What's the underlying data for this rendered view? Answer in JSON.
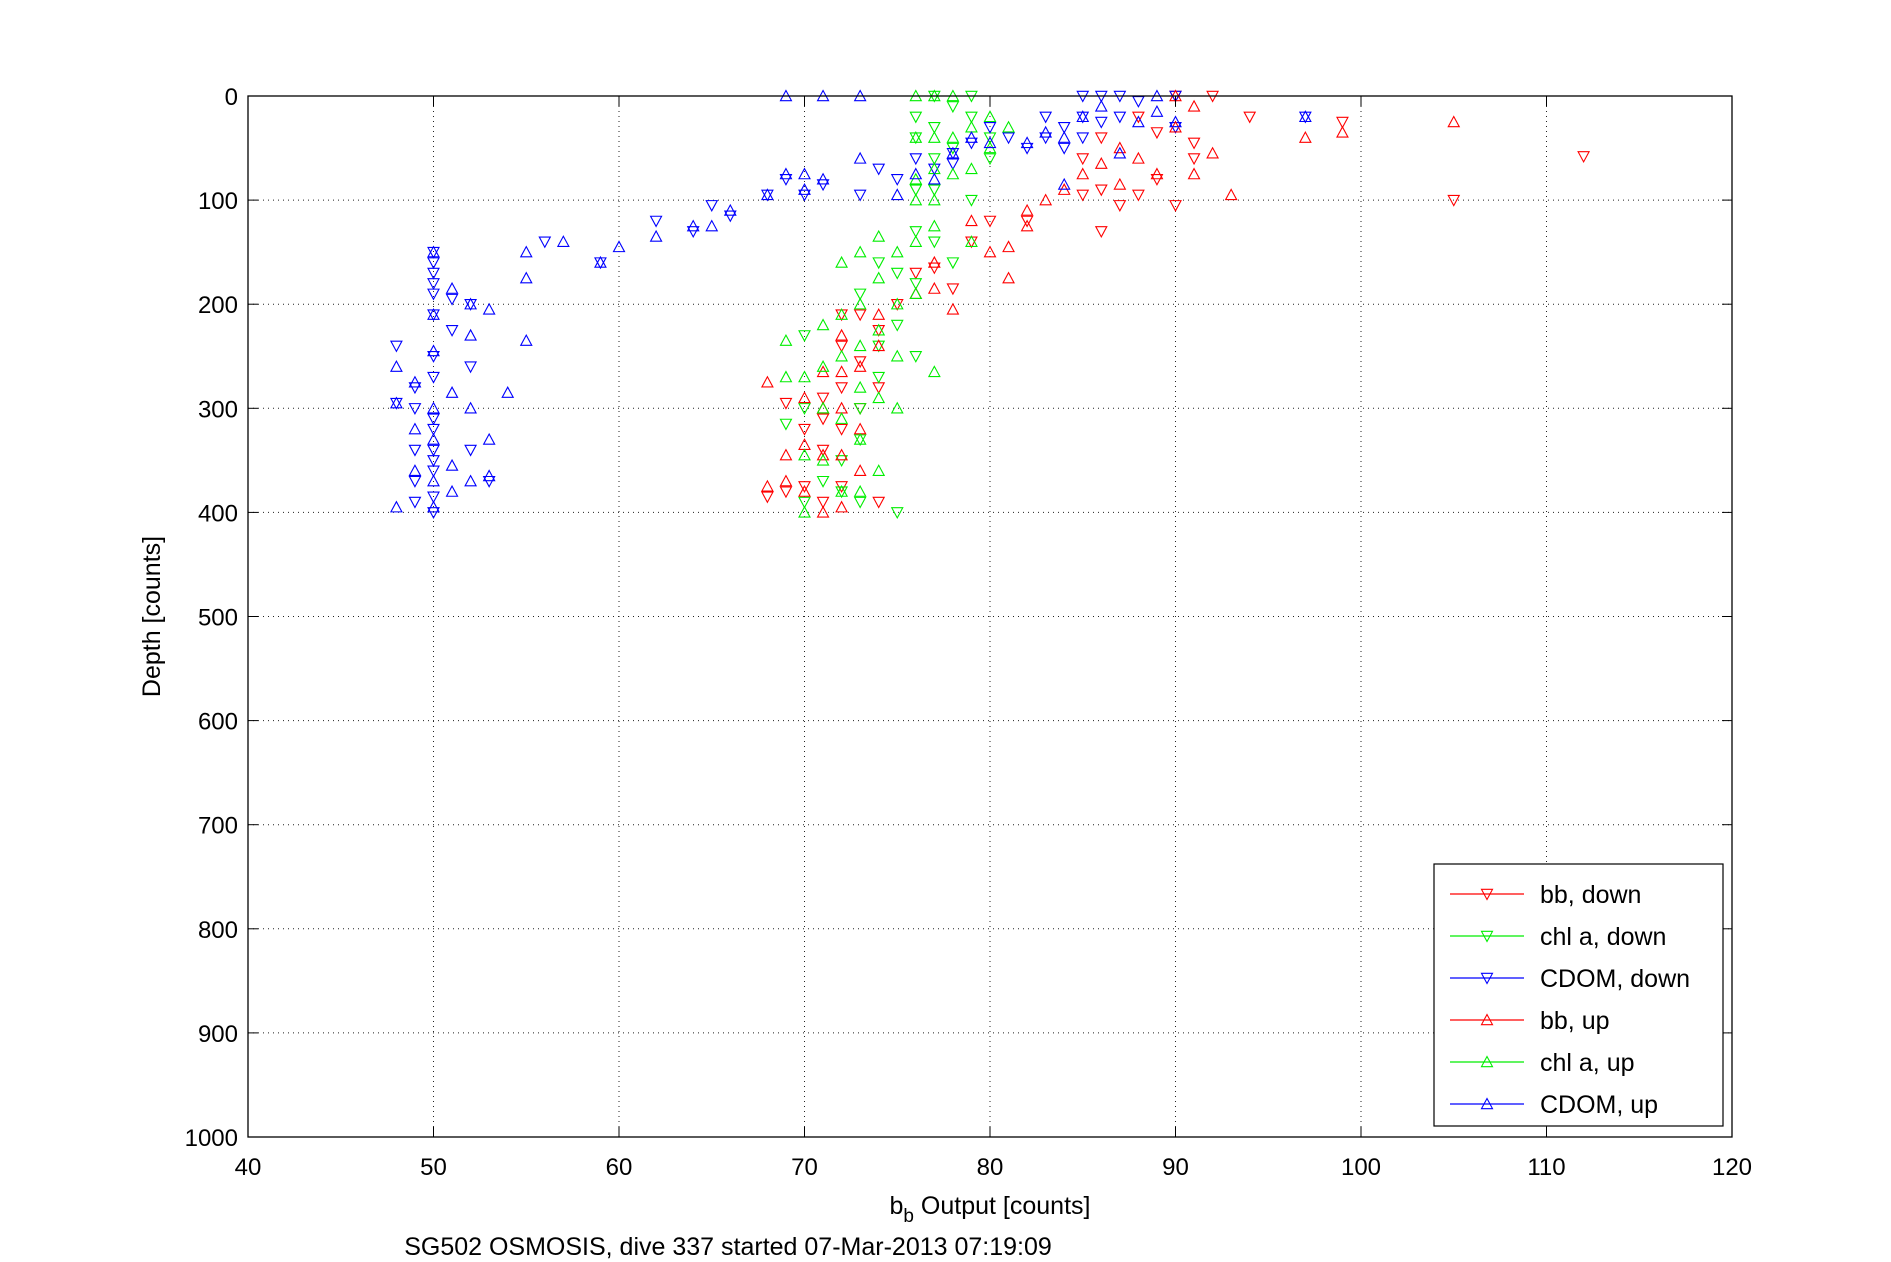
{
  "chart_data": {
    "type": "scatter",
    "xlabel_main": "b",
    "xlabel_sub": "b",
    "xlabel_rest": " Output [counts]",
    "ylabel": "Depth [counts]",
    "caption": "SG502 OSMOSIS, dive 337 started 07-Mar-2013 07:19:09",
    "xlim": [
      40,
      120
    ],
    "ylim": [
      0,
      1000
    ],
    "y_reversed": true,
    "grid": true,
    "legend_position": "bottom-right",
    "xticks": [
      "40",
      "50",
      "60",
      "70",
      "80",
      "90",
      "100",
      "110",
      "120"
    ],
    "yticks": [
      "0",
      "100",
      "200",
      "300",
      "400",
      "500",
      "600",
      "700",
      "800",
      "900",
      "1000"
    ],
    "series": [
      {
        "name": "bb, down",
        "color": "#ff0000",
        "marker": "triangle-down",
        "points": [
          [
            90,
            0
          ],
          [
            92,
            0
          ],
          [
            94,
            20
          ],
          [
            99,
            25
          ],
          [
            105,
            100
          ],
          [
            112,
            58
          ],
          [
            91,
            60
          ],
          [
            89,
            80
          ],
          [
            88,
            95
          ],
          [
            86,
            90
          ],
          [
            85,
            95
          ],
          [
            87,
            105
          ],
          [
            86,
            130
          ],
          [
            90,
            105
          ],
          [
            91,
            45
          ],
          [
            89,
            35
          ],
          [
            88,
            20
          ],
          [
            86,
            40
          ],
          [
            85,
            60
          ],
          [
            82,
            120
          ],
          [
            80,
            120
          ],
          [
            79,
            140
          ],
          [
            78,
            185
          ],
          [
            77,
            165
          ],
          [
            76,
            170
          ],
          [
            75,
            200
          ],
          [
            74,
            225
          ],
          [
            74,
            280
          ],
          [
            73,
            210
          ],
          [
            73,
            255
          ],
          [
            73,
            300
          ],
          [
            74,
            390
          ],
          [
            72,
            210
          ],
          [
            72,
            240
          ],
          [
            72,
            280
          ],
          [
            72,
            320
          ],
          [
            72,
            375
          ],
          [
            71,
            290
          ],
          [
            71,
            310
          ],
          [
            71,
            340
          ],
          [
            71,
            390
          ],
          [
            70,
            320
          ],
          [
            70,
            375
          ],
          [
            69,
            295
          ],
          [
            69,
            380
          ],
          [
            68,
            385
          ]
        ]
      },
      {
        "name": "chl a, down",
        "color": "#00ee00",
        "marker": "triangle-down",
        "points": [
          [
            76,
            20
          ],
          [
            76,
            40
          ],
          [
            77,
            0
          ],
          [
            77,
            30
          ],
          [
            77,
            60
          ],
          [
            77,
            90
          ],
          [
            78,
            10
          ],
          [
            78,
            50
          ],
          [
            79,
            0
          ],
          [
            79,
            20
          ],
          [
            79,
            100
          ],
          [
            80,
            40
          ],
          [
            80,
            60
          ],
          [
            76,
            90
          ],
          [
            76,
            130
          ],
          [
            77,
            140
          ],
          [
            78,
            160
          ],
          [
            76,
            180
          ],
          [
            75,
            220
          ],
          [
            74,
            240
          ],
          [
            74,
            270
          ],
          [
            73,
            300
          ],
          [
            73,
            330
          ],
          [
            72,
            350
          ],
          [
            72,
            380
          ],
          [
            71,
            370
          ],
          [
            70,
            300
          ],
          [
            70,
            390
          ],
          [
            69,
            315
          ],
          [
            70,
            230
          ],
          [
            73,
            190
          ],
          [
            74,
            160
          ],
          [
            75,
            170
          ],
          [
            76,
            250
          ],
          [
            73,
            390
          ],
          [
            75,
            400
          ]
        ]
      },
      {
        "name": "CDOM, down",
        "color": "#0000ff",
        "marker": "triangle-down",
        "points": [
          [
            50,
            150
          ],
          [
            50,
            160
          ],
          [
            50,
            170
          ],
          [
            50,
            180
          ],
          [
            50,
            190
          ],
          [
            50,
            210
          ],
          [
            50,
            250
          ],
          [
            50,
            270
          ],
          [
            50,
            310
          ],
          [
            50,
            320
          ],
          [
            50,
            340
          ],
          [
            50,
            350
          ],
          [
            50,
            360
          ],
          [
            50,
            385
          ],
          [
            50,
            400
          ],
          [
            51,
            195
          ],
          [
            51,
            225
          ],
          [
            49,
            280
          ],
          [
            49,
            300
          ],
          [
            49,
            340
          ],
          [
            49,
            370
          ],
          [
            49,
            390
          ],
          [
            48,
            240
          ],
          [
            48,
            295
          ],
          [
            52,
            200
          ],
          [
            52,
            260
          ],
          [
            52,
            340
          ],
          [
            53,
            370
          ],
          [
            56,
            140
          ],
          [
            59,
            160
          ],
          [
            62,
            120
          ],
          [
            64,
            130
          ],
          [
            65,
            105
          ],
          [
            66,
            115
          ],
          [
            68,
            95
          ],
          [
            69,
            80
          ],
          [
            70,
            95
          ],
          [
            71,
            85
          ],
          [
            73,
            95
          ],
          [
            74,
            70
          ],
          [
            75,
            80
          ],
          [
            76,
            60
          ],
          [
            77,
            70
          ],
          [
            78,
            55
          ],
          [
            78,
            65
          ],
          [
            79,
            45
          ],
          [
            80,
            30
          ],
          [
            81,
            40
          ],
          [
            82,
            50
          ],
          [
            83,
            20
          ],
          [
            83,
            40
          ],
          [
            84,
            30
          ],
          [
            84,
            50
          ],
          [
            85,
            0
          ],
          [
            85,
            20
          ],
          [
            85,
            40
          ],
          [
            86,
            0
          ],
          [
            86,
            25
          ],
          [
            87,
            0
          ],
          [
            87,
            20
          ],
          [
            88,
            5
          ],
          [
            90,
            0
          ],
          [
            90,
            30
          ],
          [
            97,
            20
          ]
        ]
      },
      {
        "name": "bb, up",
        "color": "#ff0000",
        "marker": "triangle-up",
        "points": [
          [
            90,
            0
          ],
          [
            90,
            30
          ],
          [
            91,
            10
          ],
          [
            92,
            55
          ],
          [
            93,
            95
          ],
          [
            97,
            40
          ],
          [
            99,
            35
          ],
          [
            105,
            25
          ],
          [
            91,
            75
          ],
          [
            89,
            75
          ],
          [
            88,
            60
          ],
          [
            87,
            50
          ],
          [
            87,
            85
          ],
          [
            85,
            75
          ],
          [
            84,
            90
          ],
          [
            86,
            65
          ],
          [
            83,
            100
          ],
          [
            82,
            110
          ],
          [
            82,
            125
          ],
          [
            81,
            145
          ],
          [
            81,
            175
          ],
          [
            80,
            150
          ],
          [
            79,
            120
          ],
          [
            78,
            205
          ],
          [
            77,
            160
          ],
          [
            77,
            185
          ],
          [
            76,
            190
          ],
          [
            74,
            210
          ],
          [
            74,
            240
          ],
          [
            73,
            260
          ],
          [
            73,
            320
          ],
          [
            73,
            360
          ],
          [
            72,
            230
          ],
          [
            72,
            265
          ],
          [
            72,
            300
          ],
          [
            72,
            345
          ],
          [
            72,
            395
          ],
          [
            71,
            265
          ],
          [
            71,
            300
          ],
          [
            71,
            345
          ],
          [
            71,
            400
          ],
          [
            70,
            290
          ],
          [
            70,
            335
          ],
          [
            70,
            380
          ],
          [
            69,
            345
          ],
          [
            69,
            370
          ],
          [
            68,
            275
          ],
          [
            68,
            375
          ]
        ]
      },
      {
        "name": "chl a, up",
        "color": "#00ee00",
        "marker": "triangle-up",
        "points": [
          [
            76,
            0
          ],
          [
            76,
            40
          ],
          [
            76,
            80
          ],
          [
            76,
            100
          ],
          [
            77,
            0
          ],
          [
            77,
            40
          ],
          [
            77,
            70
          ],
          [
            77,
            100
          ],
          [
            77,
            125
          ],
          [
            78,
            0
          ],
          [
            78,
            40
          ],
          [
            78,
            75
          ],
          [
            79,
            30
          ],
          [
            79,
            70
          ],
          [
            80,
            20
          ],
          [
            80,
            50
          ],
          [
            81,
            30
          ],
          [
            76,
            140
          ],
          [
            76,
            190
          ],
          [
            75,
            150
          ],
          [
            75,
            200
          ],
          [
            75,
            250
          ],
          [
            75,
            300
          ],
          [
            74,
            135
          ],
          [
            74,
            175
          ],
          [
            74,
            225
          ],
          [
            74,
            290
          ],
          [
            74,
            360
          ],
          [
            73,
            150
          ],
          [
            73,
            200
          ],
          [
            73,
            240
          ],
          [
            73,
            280
          ],
          [
            73,
            330
          ],
          [
            73,
            380
          ],
          [
            72,
            160
          ],
          [
            72,
            210
          ],
          [
            72,
            250
          ],
          [
            72,
            310
          ],
          [
            72,
            380
          ],
          [
            71,
            220
          ],
          [
            71,
            260
          ],
          [
            71,
            300
          ],
          [
            71,
            350
          ],
          [
            70,
            270
          ],
          [
            70,
            345
          ],
          [
            70,
            400
          ],
          [
            69,
            235
          ],
          [
            69,
            270
          ],
          [
            77,
            265
          ],
          [
            79,
            140
          ]
        ]
      },
      {
        "name": "CDOM, up",
        "color": "#0000ff",
        "marker": "triangle-up",
        "points": [
          [
            48,
            260
          ],
          [
            48,
            295
          ],
          [
            48,
            395
          ],
          [
            49,
            275
          ],
          [
            49,
            320
          ],
          [
            49,
            360
          ],
          [
            50,
            150
          ],
          [
            50,
            210
          ],
          [
            50,
            245
          ],
          [
            50,
            300
          ],
          [
            50,
            330
          ],
          [
            50,
            370
          ],
          [
            50,
            395
          ],
          [
            51,
            185
          ],
          [
            51,
            285
          ],
          [
            51,
            355
          ],
          [
            51,
            380
          ],
          [
            52,
            200
          ],
          [
            52,
            230
          ],
          [
            52,
            300
          ],
          [
            52,
            370
          ],
          [
            53,
            205
          ],
          [
            53,
            330
          ],
          [
            53,
            365
          ],
          [
            54,
            285
          ],
          [
            55,
            150
          ],
          [
            55,
            175
          ],
          [
            55,
            235
          ],
          [
            57,
            140
          ],
          [
            59,
            160
          ],
          [
            60,
            145
          ],
          [
            62,
            135
          ],
          [
            64,
            125
          ],
          [
            65,
            125
          ],
          [
            66,
            110
          ],
          [
            68,
            95
          ],
          [
            69,
            0
          ],
          [
            69,
            75
          ],
          [
            70,
            75
          ],
          [
            70,
            90
          ],
          [
            71,
            80
          ],
          [
            71,
            0
          ],
          [
            73,
            0
          ],
          [
            73,
            60
          ],
          [
            75,
            95
          ],
          [
            76,
            75
          ],
          [
            77,
            80
          ],
          [
            78,
            55
          ],
          [
            79,
            40
          ],
          [
            80,
            45
          ],
          [
            82,
            45
          ],
          [
            83,
            35
          ],
          [
            84,
            40
          ],
          [
            84,
            85
          ],
          [
            85,
            20
          ],
          [
            86,
            10
          ],
          [
            87,
            55
          ],
          [
            88,
            25
          ],
          [
            89,
            15
          ],
          [
            89,
            0
          ],
          [
            90,
            25
          ],
          [
            97,
            20
          ]
        ]
      }
    ]
  }
}
